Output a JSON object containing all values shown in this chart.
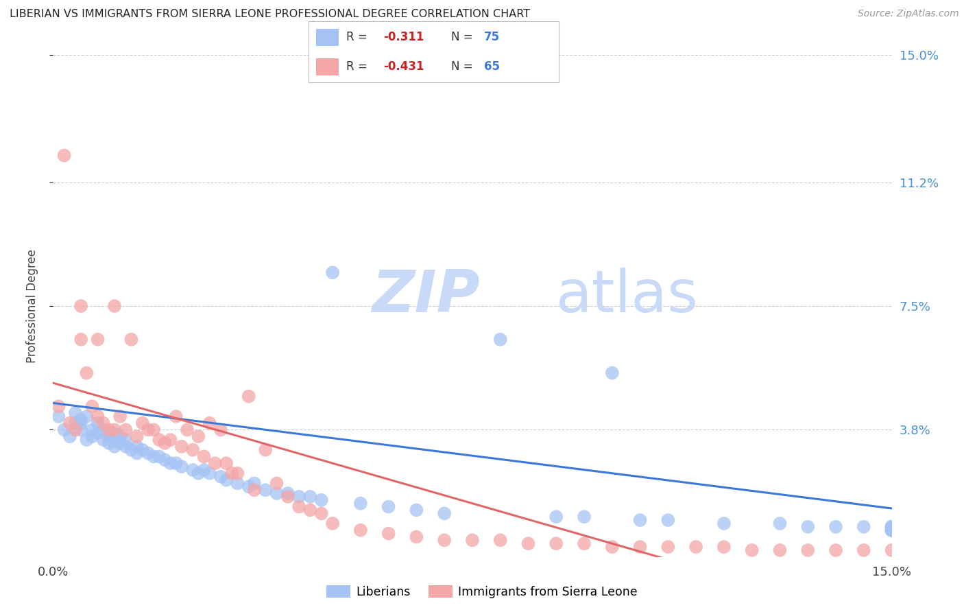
{
  "title": "LIBERIAN VS IMMIGRANTS FROM SIERRA LEONE PROFESSIONAL DEGREE CORRELATION CHART",
  "source": "Source: ZipAtlas.com",
  "ylabel": "Professional Degree",
  "xlim": [
    0.0,
    0.15
  ],
  "ylim": [
    0.0,
    0.15
  ],
  "ytick_labels": [
    "3.8%",
    "7.5%",
    "11.2%",
    "15.0%"
  ],
  "ytick_values": [
    0.038,
    0.075,
    0.112,
    0.15
  ],
  "liberian_color": "#a4c2f4",
  "sierra_leone_color": "#f4a5a5",
  "liberian_line_color": "#3c78d8",
  "sierra_leone_line_color": "#e06666",
  "background_color": "#ffffff",
  "grid_color": "#cccccc",
  "watermark_zip_color": "#c9daf8",
  "watermark_atlas_color": "#c9daf8",
  "legend_label_1": "Liberians",
  "legend_label_2": "Immigrants from Sierra Leone",
  "liberian_R": -0.311,
  "liberian_N": 75,
  "sierra_leone_R": -0.431,
  "sierra_leone_N": 65,
  "lib_intercept": 0.046,
  "lib_slope": -0.21,
  "sl_intercept": 0.052,
  "sl_slope": -0.48,
  "liberian_x": [
    0.001,
    0.002,
    0.003,
    0.004,
    0.004,
    0.005,
    0.005,
    0.005,
    0.006,
    0.006,
    0.007,
    0.007,
    0.008,
    0.008,
    0.009,
    0.009,
    0.01,
    0.01,
    0.011,
    0.011,
    0.012,
    0.012,
    0.013,
    0.013,
    0.014,
    0.015,
    0.015,
    0.016,
    0.017,
    0.018,
    0.019,
    0.02,
    0.021,
    0.022,
    0.023,
    0.025,
    0.026,
    0.027,
    0.028,
    0.03,
    0.031,
    0.033,
    0.035,
    0.036,
    0.038,
    0.04,
    0.042,
    0.044,
    0.046,
    0.048,
    0.05,
    0.055,
    0.06,
    0.065,
    0.07,
    0.08,
    0.09,
    0.095,
    0.1,
    0.105,
    0.11,
    0.12,
    0.13,
    0.135,
    0.14,
    0.145,
    0.15,
    0.15,
    0.15,
    0.15,
    0.15,
    0.15,
    0.15,
    0.15,
    0.15
  ],
  "liberian_y": [
    0.042,
    0.038,
    0.036,
    0.04,
    0.043,
    0.038,
    0.04,
    0.041,
    0.035,
    0.042,
    0.036,
    0.038,
    0.037,
    0.04,
    0.035,
    0.038,
    0.034,
    0.036,
    0.033,
    0.037,
    0.034,
    0.036,
    0.033,
    0.035,
    0.032,
    0.031,
    0.033,
    0.032,
    0.031,
    0.03,
    0.03,
    0.029,
    0.028,
    0.028,
    0.027,
    0.026,
    0.025,
    0.026,
    0.025,
    0.024,
    0.023,
    0.022,
    0.021,
    0.022,
    0.02,
    0.019,
    0.019,
    0.018,
    0.018,
    0.017,
    0.085,
    0.016,
    0.015,
    0.014,
    0.013,
    0.065,
    0.012,
    0.012,
    0.055,
    0.011,
    0.011,
    0.01,
    0.01,
    0.009,
    0.009,
    0.009,
    0.008,
    0.009,
    0.008,
    0.009,
    0.008,
    0.009,
    0.008,
    0.009,
    0.008
  ],
  "sierra_leone_x": [
    0.001,
    0.002,
    0.003,
    0.004,
    0.005,
    0.005,
    0.006,
    0.007,
    0.008,
    0.008,
    0.009,
    0.01,
    0.011,
    0.011,
    0.012,
    0.013,
    0.014,
    0.015,
    0.016,
    0.017,
    0.018,
    0.019,
    0.02,
    0.021,
    0.022,
    0.023,
    0.024,
    0.025,
    0.026,
    0.027,
    0.028,
    0.029,
    0.03,
    0.031,
    0.032,
    0.033,
    0.035,
    0.036,
    0.038,
    0.04,
    0.042,
    0.044,
    0.046,
    0.048,
    0.05,
    0.055,
    0.06,
    0.065,
    0.07,
    0.075,
    0.08,
    0.085,
    0.09,
    0.095,
    0.1,
    0.105,
    0.11,
    0.115,
    0.12,
    0.125,
    0.13,
    0.135,
    0.14,
    0.145,
    0.15
  ],
  "sierra_leone_y": [
    0.045,
    0.12,
    0.04,
    0.038,
    0.075,
    0.065,
    0.055,
    0.045,
    0.042,
    0.065,
    0.04,
    0.038,
    0.075,
    0.038,
    0.042,
    0.038,
    0.065,
    0.036,
    0.04,
    0.038,
    0.038,
    0.035,
    0.034,
    0.035,
    0.042,
    0.033,
    0.038,
    0.032,
    0.036,
    0.03,
    0.04,
    0.028,
    0.038,
    0.028,
    0.025,
    0.025,
    0.048,
    0.02,
    0.032,
    0.022,
    0.018,
    0.015,
    0.014,
    0.013,
    0.01,
    0.008,
    0.007,
    0.006,
    0.005,
    0.005,
    0.005,
    0.004,
    0.004,
    0.004,
    0.003,
    0.003,
    0.003,
    0.003,
    0.003,
    0.002,
    0.002,
    0.002,
    0.002,
    0.002,
    0.002
  ]
}
